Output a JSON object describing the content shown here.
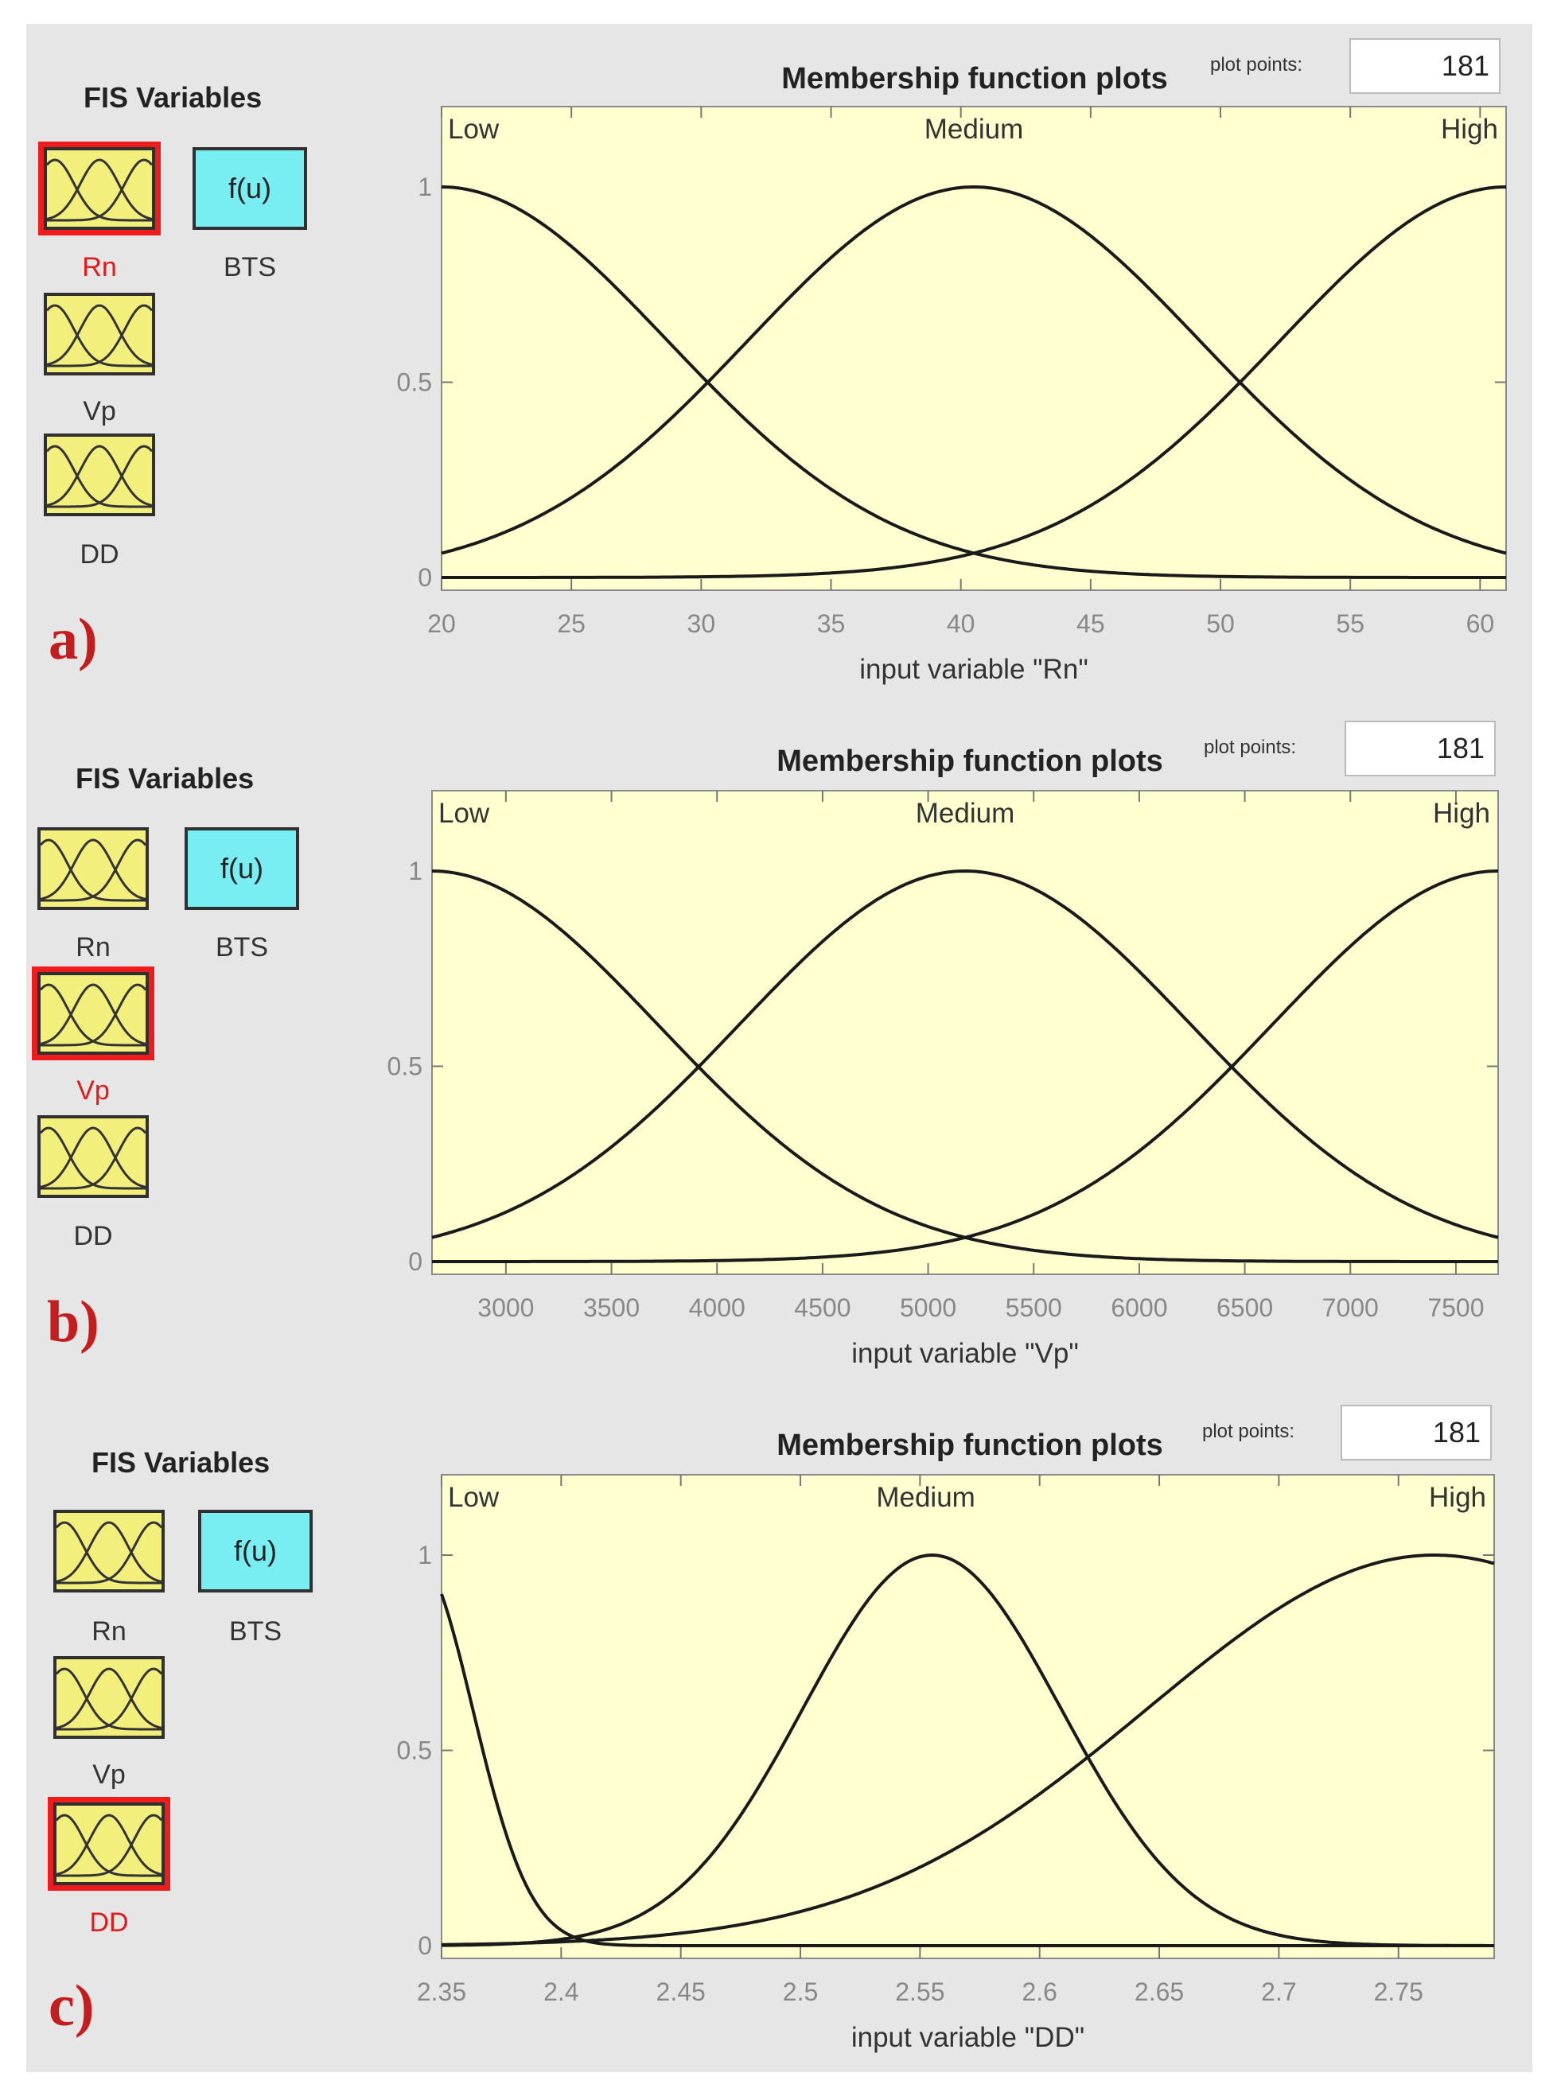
{
  "panels": [
    {
      "letter": "a)",
      "fis_title": "FIS Variables",
      "inputs": [
        "Rn",
        "Vp",
        "DD"
      ],
      "output": {
        "label": "BTS",
        "box_text": "f(u)"
      },
      "selected_index": 0,
      "plot_title": "Membership function plots",
      "plot_points_label": "plot points:",
      "plot_points_value": "181",
      "xlabel": "input variable \"Rn\"",
      "xrange": [
        20,
        61
      ],
      "xticks": [
        "20",
        "25",
        "30",
        "35",
        "40",
        "45",
        "50",
        "55",
        "60"
      ],
      "yticks": [
        "0",
        "0.5",
        "1"
      ],
      "mf_labels": [
        "Low",
        "Medium",
        "High"
      ],
      "mfs": [
        {
          "name": "Low",
          "type": "gaussmf",
          "sigma": 8.7,
          "center": 20
        },
        {
          "name": "Medium",
          "type": "gaussmf",
          "sigma": 8.7,
          "center": 40.5
        },
        {
          "name": "High",
          "type": "gaussmf",
          "sigma": 8.7,
          "center": 61
        }
      ]
    },
    {
      "letter": "b)",
      "fis_title": "FIS Variables",
      "inputs": [
        "Rn",
        "Vp",
        "DD"
      ],
      "output": {
        "label": "BTS",
        "box_text": "f(u)"
      },
      "selected_index": 1,
      "plot_title": "Membership function plots",
      "plot_points_label": "plot points:",
      "plot_points_value": "181",
      "xlabel": "input variable \"Vp\"",
      "xrange": [
        2650,
        7700
      ],
      "xticks": [
        "3000",
        "3500",
        "4000",
        "4500",
        "5000",
        "5500",
        "6000",
        "6500",
        "7000",
        "7500"
      ],
      "yticks": [
        "0",
        "0.5",
        "1"
      ],
      "mf_labels": [
        "Low",
        "Medium",
        "High"
      ],
      "mfs": [
        {
          "name": "Low",
          "type": "gaussmf",
          "sigma": 1070,
          "center": 2650
        },
        {
          "name": "Medium",
          "type": "gaussmf",
          "sigma": 1070,
          "center": 5175
        },
        {
          "name": "High",
          "type": "gaussmf",
          "sigma": 1070,
          "center": 7700
        }
      ]
    },
    {
      "letter": "c)",
      "fis_title": "FIS Variables",
      "inputs": [
        "Rn",
        "Vp",
        "DD"
      ],
      "output": {
        "label": "BTS",
        "box_text": "f(u)"
      },
      "selected_index": 2,
      "plot_title": "Membership function plots",
      "plot_points_label": "plot points:",
      "plot_points_value": "181",
      "xlabel": "input variable \"DD\"",
      "xrange": [
        2.35,
        2.79
      ],
      "xticks": [
        "2.35",
        "2.4",
        "2.45",
        "2.5",
        "2.55",
        "2.6",
        "2.65",
        "2.7",
        "2.75"
      ],
      "yticks": [
        "0",
        "0.5",
        "1"
      ],
      "mf_labels": [
        "Low",
        "Medium",
        "High"
      ],
      "mfs": [
        {
          "name": "Low",
          "type": "gaussmf",
          "sigma": 0.024,
          "center": 2.339
        },
        {
          "name": "Medium",
          "type": "gaussmf",
          "sigma": 0.054,
          "center": 2.555
        },
        {
          "name": "High",
          "type": "gaussmf",
          "sigma": 0.12,
          "center": 2.765
        }
      ]
    }
  ],
  "colors": {
    "background": "#e6e6e6",
    "plot_bg": "#ffffcf",
    "var_box": "#f3ef7c",
    "output_box": "#79eef2",
    "selected": "#ee1c1c",
    "panel_letter": "#c41d1d"
  },
  "icons": {
    "input_var": "gaussian-mf-icon",
    "output_var": "f(u)"
  }
}
